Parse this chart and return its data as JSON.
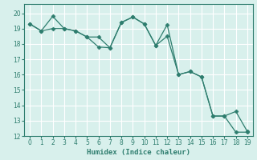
{
  "xlabel": "Humidex (Indice chaleur)",
  "x": [
    0,
    1,
    2,
    3,
    4,
    5,
    6,
    7,
    8,
    9,
    10,
    11,
    12,
    13,
    14,
    15,
    16,
    17,
    18,
    19
  ],
  "y_line1": [
    19.3,
    18.85,
    19.8,
    19.0,
    18.85,
    18.45,
    17.8,
    17.75,
    19.4,
    19.75,
    19.3,
    17.9,
    19.25,
    16.0,
    16.2,
    15.85,
    13.3,
    13.3,
    13.6,
    12.3
  ],
  "y_line2": [
    19.3,
    18.85,
    19.0,
    19.0,
    18.85,
    18.45,
    18.45,
    17.75,
    19.4,
    19.75,
    19.3,
    17.9,
    18.5,
    16.0,
    16.2,
    15.85,
    13.3,
    13.3,
    12.25,
    12.25
  ],
  "line_color": "#2e7d6e",
  "marker": "D",
  "marker_size": 2.5,
  "bg_color": "#d8f0ec",
  "grid_color": "#ffffff",
  "tick_color": "#2e7d6e",
  "label_color": "#2e7d6e",
  "xlim": [
    -0.5,
    19.5
  ],
  "ylim": [
    12,
    20.6
  ],
  "yticks": [
    12,
    13,
    14,
    15,
    16,
    17,
    18,
    19,
    20
  ],
  "xticks": [
    0,
    1,
    2,
    3,
    4,
    5,
    6,
    7,
    8,
    9,
    10,
    11,
    12,
    13,
    14,
    15,
    16,
    17,
    18,
    19
  ]
}
